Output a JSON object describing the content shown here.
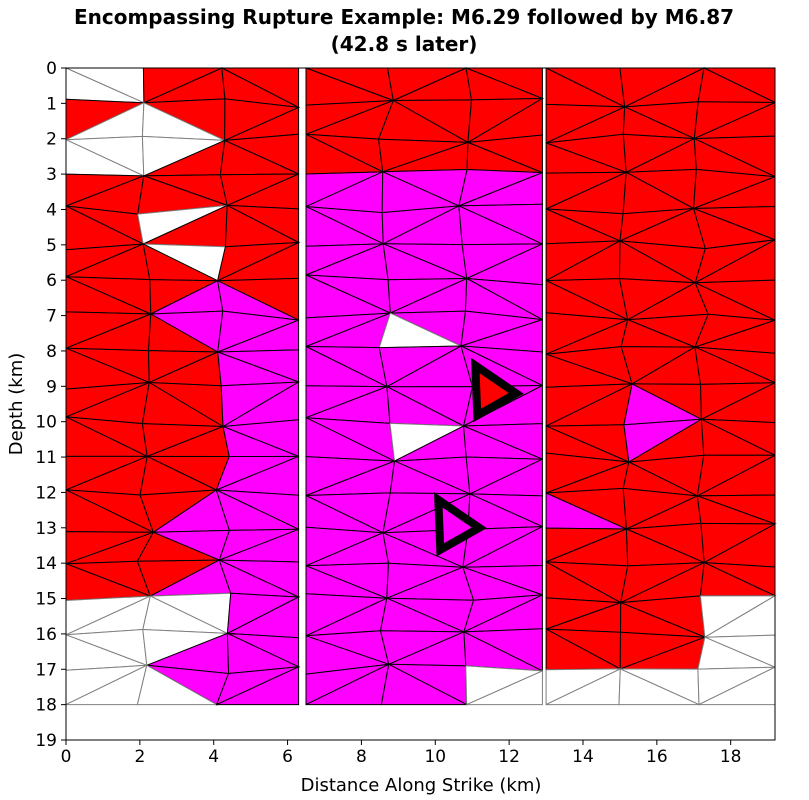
{
  "chart_data": {
    "type": "fault-mesh-rupture-map",
    "title_line1": "Encompassing Rupture Example: M6.29 followed by M6.87",
    "title_line2": "(42.8 s later)",
    "xlabel": "Distance Along Strike (km)",
    "ylabel": "Depth (km)",
    "xlim": [
      0,
      19.2
    ],
    "ylim": [
      19,
      0
    ],
    "y_inverted": true,
    "x_ticks": [
      0,
      2,
      4,
      6,
      8,
      10,
      12,
      14,
      16,
      18
    ],
    "y_ticks": [
      0,
      1,
      2,
      3,
      4,
      5,
      6,
      7,
      8,
      9,
      10,
      11,
      12,
      13,
      14,
      15,
      16,
      17,
      18,
      19
    ],
    "grid": false,
    "legend": "none",
    "colors": {
      "second_event_rupture": "#ff0000",
      "first_event_rupture": "#ff00ff",
      "unruptured": "#ffffff",
      "unruptured_edge": "#808080",
      "element_edge": "#000000",
      "hypocenter_marker": "#000000"
    },
    "fault_sections": [
      {
        "x_start": 0.0,
        "x_end": 6.3,
        "depth_top": 0,
        "depth_bottom": 18
      },
      {
        "x_start": 6.5,
        "x_end": 12.9,
        "depth_top": 0,
        "depth_bottom": 18
      },
      {
        "x_start": 13.0,
        "x_end": 19.2,
        "depth_top": 0,
        "depth_bottom": 18
      }
    ],
    "first_event_region_depth_km": [
      3,
      18
    ],
    "unruptured_regions": [
      {
        "x": [
          0,
          5
        ],
        "depth": [
          0,
          5.5
        ]
      },
      {
        "x": [
          0,
          5
        ],
        "depth": [
          15,
          18
        ]
      },
      {
        "x": [
          8,
          10
        ],
        "depth": [
          7,
          10.5
        ]
      },
      {
        "x": [
          13,
          19.2
        ],
        "depth": [
          15,
          18
        ]
      }
    ],
    "hypocenter_markers": [
      {
        "event": "M6.29",
        "x_km": 11.3,
        "depth_km": 9.2,
        "fill": "#ff0000"
      },
      {
        "event": "M6.87",
        "x_km": 10.3,
        "depth_km": 13.0,
        "fill": "#ff00ff"
      }
    ]
  }
}
